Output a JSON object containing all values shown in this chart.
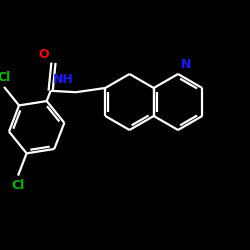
{
  "bg_color": "#000000",
  "bond_color": "#ffffff",
  "N_color": "#1a1aff",
  "O_color": "#ff0000",
  "Cl_color": "#00bb00",
  "lw": 1.6,
  "dbo": 0.012,
  "figsize": [
    2.5,
    2.5
  ],
  "dpi": 100,
  "xlim": [
    0,
    250
  ],
  "ylim": [
    0,
    250
  ]
}
